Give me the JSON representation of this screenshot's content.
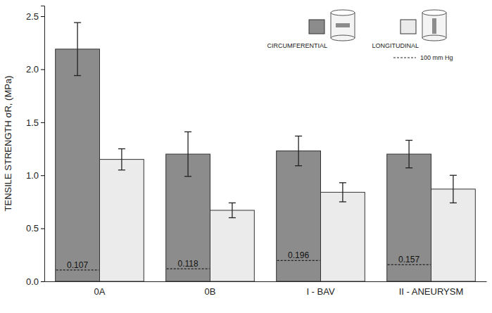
{
  "chart_data": {
    "type": "bar",
    "y_label": "TENSILE STRENGTH σR, (MPa)",
    "categories": [
      "0A",
      "0B",
      "I - BAV",
      "II - ANEURYSM"
    ],
    "series": [
      {
        "name": "CIRCUMFERENTIAL",
        "color": "#8c8c8c",
        "values": [
          2.19,
          1.2,
          1.23,
          1.2
        ],
        "errors": [
          0.25,
          0.21,
          0.14,
          0.13
        ]
      },
      {
        "name": "LONGITUDINAL",
        "color": "#ebebeb",
        "values": [
          1.15,
          0.67,
          0.84,
          0.87
        ],
        "errors": [
          0.1,
          0.07,
          0.09,
          0.13
        ]
      }
    ],
    "reference_lines": {
      "name": "100 mm Hg",
      "line_style": "dashed",
      "values": [
        0.107,
        0.118,
        0.196,
        0.157
      ]
    },
    "ylim": [
      0,
      2.6
    ],
    "yticks": [
      {
        "value": 0,
        "label": "0.0"
      },
      0.5,
      {
        "value": 1,
        "label": "1.0"
      },
      1.5,
      {
        "value": 2,
        "label": "2.0"
      },
      2.5
    ],
    "grid": false,
    "legend": "upper right"
  }
}
